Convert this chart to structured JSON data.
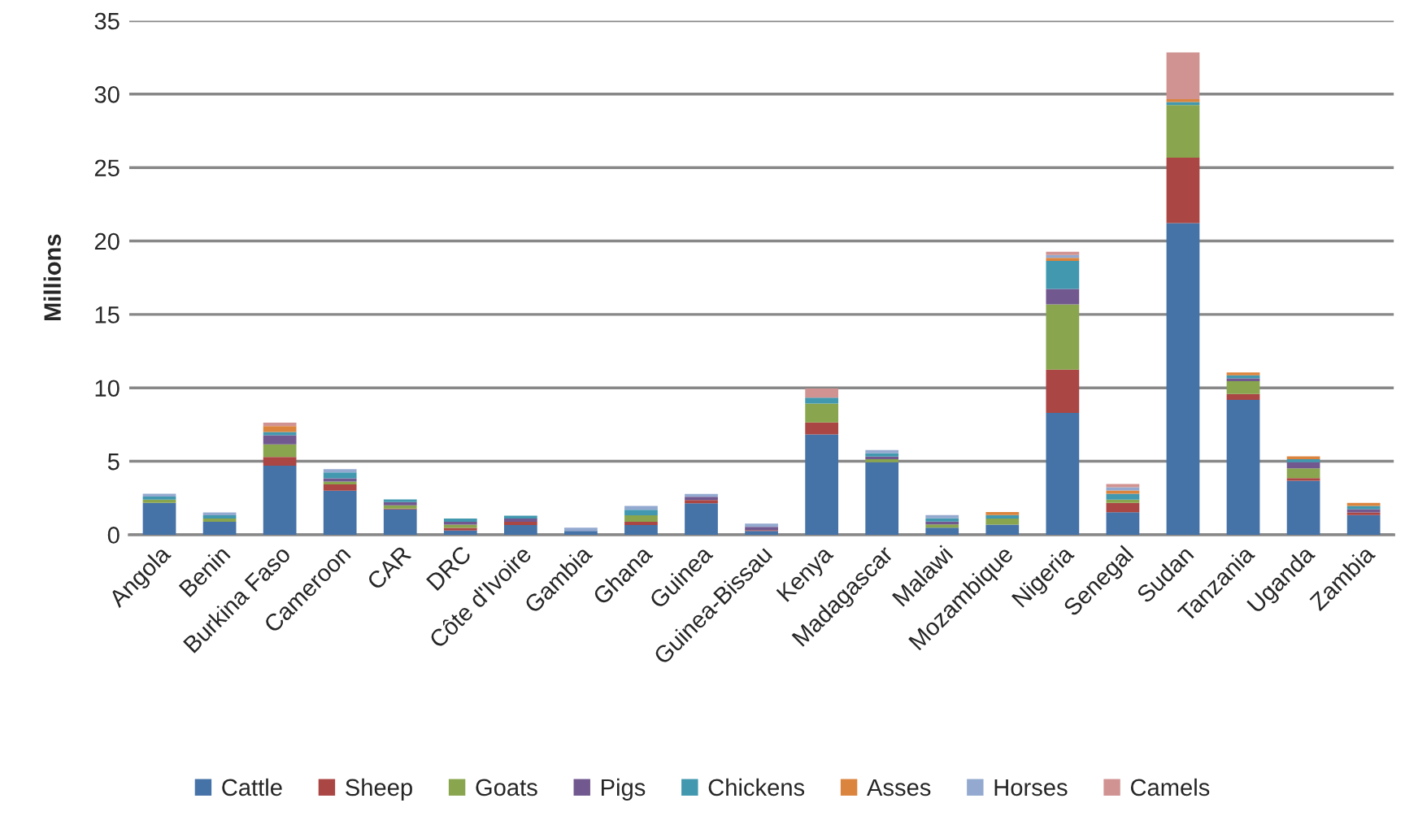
{
  "chart_data": {
    "type": "bar",
    "stacked": true,
    "ylabel": "Millions",
    "categories": [
      "Angola",
      "Benin",
      "Burkina Faso",
      "Cameroon",
      "CAR",
      "DRC",
      "Côte d'Ivoire",
      "Gambia",
      "Ghana",
      "Guinea",
      "Guinea-Bissau",
      "Kenya",
      "Madagascar",
      "Malawi",
      "Mozambique",
      "Nigeria",
      "Senegal",
      "Sudan",
      "Tanzania",
      "Uganda",
      "Zambia"
    ],
    "series": [
      {
        "name": "Cattle",
        "color": "#4572a7",
        "values": [
          2.17,
          0.88,
          4.7,
          3.0,
          1.73,
          0.28,
          0.66,
          0.26,
          0.66,
          2.14,
          0.26,
          6.83,
          4.94,
          0.48,
          0.68,
          8.29,
          1.53,
          21.22,
          9.18,
          3.67,
          1.34
        ]
      },
      {
        "name": "Sheep",
        "color": "#aa4643",
        "values": [
          0,
          0,
          0.59,
          0.42,
          0.05,
          0.18,
          0.22,
          0,
          0.22,
          0.22,
          0.05,
          0.81,
          0,
          0,
          0,
          2.95,
          0.64,
          4.45,
          0.4,
          0.18,
          0.18
        ]
      },
      {
        "name": "Goats",
        "color": "#89a54e",
        "values": [
          0.22,
          0.22,
          0.86,
          0.2,
          0.22,
          0.22,
          0,
          0,
          0.44,
          0,
          0,
          1.29,
          0.2,
          0.22,
          0.42,
          4.44,
          0.22,
          3.59,
          0.87,
          0.67,
          0
        ]
      },
      {
        "name": "Pigs",
        "color": "#71588f",
        "values": [
          0,
          0,
          0.63,
          0.22,
          0.22,
          0.2,
          0.22,
          0,
          0,
          0.22,
          0.22,
          0,
          0.18,
          0.2,
          0,
          1.05,
          0,
          0,
          0.2,
          0.42,
          0.22
        ]
      },
      {
        "name": "Chickens",
        "color": "#4198af",
        "values": [
          0.2,
          0.22,
          0.22,
          0.4,
          0.18,
          0.22,
          0.2,
          0,
          0.38,
          0,
          0,
          0.4,
          0.22,
          0.22,
          0.24,
          1.92,
          0.4,
          0.2,
          0.2,
          0.2,
          0.22
        ]
      },
      {
        "name": "Asses",
        "color": "#db843d",
        "values": [
          0,
          0,
          0.39,
          0,
          0,
          0,
          0,
          0,
          0,
          0,
          0,
          0,
          0,
          0,
          0.2,
          0.2,
          0.22,
          0.2,
          0.2,
          0.2,
          0.2
        ]
      },
      {
        "name": "Horses",
        "color": "#93a9cf",
        "values": [
          0.2,
          0.2,
          0,
          0.22,
          0,
          0,
          0,
          0.22,
          0.26,
          0.2,
          0.22,
          0,
          0.22,
          0.22,
          0,
          0.2,
          0.22,
          0,
          0,
          0,
          0
        ]
      },
      {
        "name": "Camels",
        "color": "#d19392",
        "values": [
          0,
          0,
          0.24,
          0,
          0,
          0,
          0,
          0,
          0,
          0,
          0,
          0.63,
          0,
          0,
          0,
          0.22,
          0.22,
          3.18,
          0,
          0,
          0
        ]
      }
    ],
    "ylim": [
      0,
      35
    ],
    "yticks": [
      0,
      5,
      10,
      15,
      20,
      25,
      30,
      35
    ],
    "grid": "y",
    "legend": "bottom"
  }
}
